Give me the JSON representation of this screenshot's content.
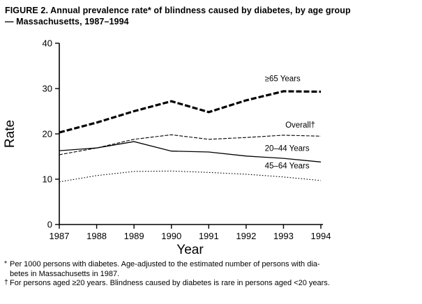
{
  "header": {
    "title_lines": [
      "FIGURE 2. Annual prevalence rate* of blindness caused by diabetes, by age group",
      "— Massachusetts, 1987–1994"
    ]
  },
  "chart_data": {
    "type": "line",
    "title": "Annual prevalence rate of blindness caused by diabetes, by age group — Massachusetts, 1987–1994",
    "x": [
      1987,
      1988,
      1989,
      1990,
      1991,
      1992,
      1993,
      1994
    ],
    "series": [
      {
        "name": "≥65 Years",
        "line_style": "bold-dashed",
        "values": [
          20.3,
          22.5,
          25.0,
          27.2,
          24.8,
          27.4,
          29.4,
          29.3
        ]
      },
      {
        "name": "Overall†",
        "line_style": "dashed",
        "values": [
          15.4,
          16.9,
          18.8,
          19.8,
          18.8,
          19.2,
          19.7,
          19.5
        ]
      },
      {
        "name": "20–44 Years",
        "line_style": "solid",
        "values": [
          16.3,
          16.9,
          18.3,
          16.2,
          16.0,
          15.1,
          14.6,
          13.8
        ]
      },
      {
        "name": "45–64 Years",
        "line_style": "dotted",
        "values": [
          9.4,
          10.8,
          11.7,
          11.8,
          11.5,
          11.1,
          10.5,
          9.7
        ]
      }
    ],
    "annotations": [
      {
        "text": "≥65 Years",
        "x": 1992.5,
        "y": 31.6
      },
      {
        "text": "Overall†",
        "x": 1993.05,
        "y": 21.4
      },
      {
        "text": "20–44 Years",
        "x": 1992.5,
        "y": 16.2
      },
      {
        "text": "45–64 Years",
        "x": 1992.5,
        "y": 12.4
      }
    ],
    "xlabel": "Year",
    "ylabel": "Rate",
    "xlim": [
      1987,
      1994
    ],
    "ylim": [
      0,
      40
    ],
    "yticks": [
      0,
      10,
      20,
      30,
      40
    ],
    "grid": false,
    "legend": "inline-labels",
    "line_color": "#000000"
  },
  "footnotes": [
    {
      "marker": "*",
      "text": "Per 1000 persons with diabetes. Age-adjusted to the estimated number of persons with dia-\nbetes in Massachusetts in 1987."
    },
    {
      "marker": "†",
      "text": "For persons aged ≥20 years. Blindness caused by diabetes is rare in persons aged <20 years."
    }
  ]
}
